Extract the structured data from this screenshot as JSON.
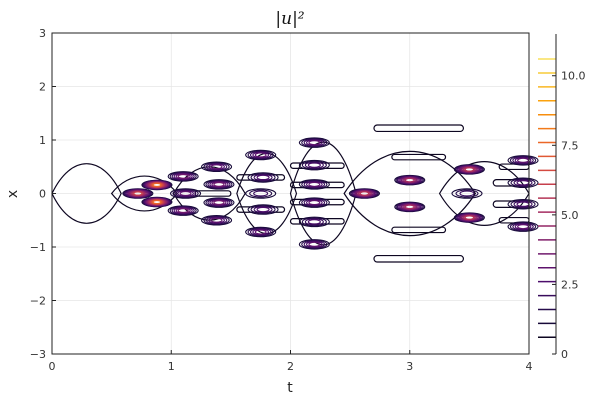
{
  "chart_data": {
    "type": "contour",
    "title": "|u|²",
    "xlabel": "t",
    "ylabel": "x",
    "xlim": [
      0,
      4
    ],
    "ylim": [
      -3,
      3
    ],
    "xticks": [
      0,
      1,
      2,
      3,
      4
    ],
    "xtick_labels": [
      "0",
      "1",
      "2",
      "3",
      "4"
    ],
    "yticks": [
      -3,
      -2,
      -1,
      0,
      1,
      2,
      3
    ],
    "ytick_labels": [
      "−3",
      "−2",
      "−1",
      "0",
      "1",
      "2",
      "3"
    ],
    "grid": true,
    "colorbar": {
      "range": [
        0,
        11.5
      ],
      "ticks": [
        0,
        2.5,
        5.0,
        7.5,
        10.0
      ],
      "tick_labels": [
        "0",
        "2.5",
        "5.0",
        "7.5",
        "10.0"
      ],
      "levels": [
        0.6,
        1.1,
        1.6,
        2.1,
        2.6,
        3.1,
        3.6,
        4.1,
        4.6,
        5.1,
        5.6,
        6.1,
        6.6,
        7.1,
        7.6,
        8.1,
        8.6,
        9.1,
        9.6,
        10.1,
        10.6
      ],
      "colormap": [
        "#000004",
        "#1b0c41",
        "#4a0c6b",
        "#781c6d",
        "#a52c60",
        "#cf4446",
        "#ed6925",
        "#fb9b06",
        "#f7d13d",
        "#fcffa4"
      ]
    },
    "shapes": [
      {
        "kind": "lens",
        "t0": 0.0,
        "t1": 0.58,
        "x": 0.0,
        "hw": 0.58,
        "level": 0.6
      },
      {
        "kind": "lens",
        "t0": 0.5,
        "t1": 1.05,
        "x": 0.0,
        "hw": 0.34,
        "level": 0.6
      },
      {
        "kind": "lens",
        "t0": 1.02,
        "t1": 1.62,
        "x": 0.0,
        "hw": 0.52,
        "level": 0.6
      },
      {
        "kind": "lens",
        "t0": 1.55,
        "t1": 2.05,
        "x": 0.0,
        "hw": 0.78,
        "level": 0.6
      },
      {
        "kind": "lens",
        "t0": 2.0,
        "t1": 2.55,
        "x": 0.0,
        "hw": 1.0,
        "level": 0.6
      },
      {
        "kind": "lens",
        "t0": 2.45,
        "t1": 3.55,
        "x": 0.0,
        "hw": 0.82,
        "level": 0.6
      },
      {
        "kind": "lens",
        "t0": 3.25,
        "t1": 4.0,
        "x": 0.0,
        "hw": 0.62,
        "level": 0.6
      },
      {
        "kind": "band",
        "t0": 2.7,
        "t1": 3.45,
        "x": 1.22,
        "hw": 0.06,
        "level": 0.6
      },
      {
        "kind": "band",
        "t0": 2.7,
        "t1": 3.45,
        "x": -1.22,
        "hw": 0.06,
        "level": 0.6
      },
      {
        "kind": "band",
        "t0": 2.85,
        "t1": 3.3,
        "x": 0.68,
        "hw": 0.05,
        "level": 0.6
      },
      {
        "kind": "band",
        "t0": 2.85,
        "t1": 3.3,
        "x": -0.68,
        "hw": 0.05,
        "level": 0.6
      },
      {
        "kind": "band",
        "t0": 2.0,
        "t1": 2.45,
        "x": 0.16,
        "hw": 0.05,
        "level": 0.6
      },
      {
        "kind": "band",
        "t0": 2.0,
        "t1": 2.45,
        "x": -0.16,
        "hw": 0.05,
        "level": 0.6
      },
      {
        "kind": "band",
        "t0": 2.0,
        "t1": 2.45,
        "x": 0.52,
        "hw": 0.05,
        "level": 0.6
      },
      {
        "kind": "band",
        "t0": 2.0,
        "t1": 2.45,
        "x": -0.52,
        "hw": 0.05,
        "level": 0.6
      },
      {
        "kind": "band",
        "t0": 3.7,
        "t1": 4.0,
        "x": 0.2,
        "hw": 0.06,
        "level": 0.6
      },
      {
        "kind": "band",
        "t0": 3.7,
        "t1": 4.0,
        "x": -0.2,
        "hw": 0.06,
        "level": 0.6
      },
      {
        "kind": "band",
        "t0": 3.75,
        "t1": 4.0,
        "x": 0.5,
        "hw": 0.05,
        "level": 0.6
      },
      {
        "kind": "band",
        "t0": 3.75,
        "t1": 4.0,
        "x": -0.5,
        "hw": 0.05,
        "level": 0.6
      },
      {
        "kind": "band",
        "t0": 1.55,
        "t1": 1.95,
        "x": 0.3,
        "hw": 0.05,
        "level": 0.6
      },
      {
        "kind": "band",
        "t0": 1.55,
        "t1": 1.95,
        "x": -0.3,
        "hw": 0.05,
        "level": 0.6
      },
      {
        "kind": "band",
        "t0": 1.2,
        "t1": 1.5,
        "x": 0.0,
        "hw": 0.05,
        "level": 0.6
      }
    ],
    "peaks": [
      {
        "t": 0.72,
        "x": 0.0,
        "peak": 6.2
      },
      {
        "t": 0.88,
        "x": 0.16,
        "peak": 7.6
      },
      {
        "t": 0.88,
        "x": -0.16,
        "peak": 7.6
      },
      {
        "t": 1.1,
        "x": 0.32,
        "peak": 3.6
      },
      {
        "t": 1.1,
        "x": -0.32,
        "peak": 3.6
      },
      {
        "t": 1.12,
        "x": 0.0,
        "peak": 3.1
      },
      {
        "t": 1.38,
        "x": 0.5,
        "peak": 3.1
      },
      {
        "t": 1.38,
        "x": -0.5,
        "peak": 3.1
      },
      {
        "t": 1.4,
        "x": 0.17,
        "peak": 3.6
      },
      {
        "t": 1.4,
        "x": -0.17,
        "peak": 3.6
      },
      {
        "t": 1.75,
        "x": 0.72,
        "peak": 3.1
      },
      {
        "t": 1.75,
        "x": -0.72,
        "peak": 3.1
      },
      {
        "t": 1.77,
        "x": 0.3,
        "peak": 2.6
      },
      {
        "t": 1.77,
        "x": -0.3,
        "peak": 2.6
      },
      {
        "t": 1.75,
        "x": 0.0,
        "peak": 2.1
      },
      {
        "t": 2.2,
        "x": 0.95,
        "peak": 3.1
      },
      {
        "t": 2.2,
        "x": -0.95,
        "peak": 3.1
      },
      {
        "t": 2.2,
        "x": 0.53,
        "peak": 2.6
      },
      {
        "t": 2.2,
        "x": -0.53,
        "peak": 2.6
      },
      {
        "t": 2.2,
        "x": 0.17,
        "peak": 3.1
      },
      {
        "t": 2.2,
        "x": -0.17,
        "peak": 3.1
      },
      {
        "t": 2.62,
        "x": 0.0,
        "peak": 5.6
      },
      {
        "t": 3.0,
        "x": 0.25,
        "peak": 5.1
      },
      {
        "t": 3.0,
        "x": -0.25,
        "peak": 5.1
      },
      {
        "t": 3.5,
        "x": 0.45,
        "peak": 5.6
      },
      {
        "t": 3.5,
        "x": -0.45,
        "peak": 5.6
      },
      {
        "t": 3.48,
        "x": 0.0,
        "peak": 2.1
      },
      {
        "t": 3.95,
        "x": 0.62,
        "peak": 3.1
      },
      {
        "t": 3.95,
        "x": -0.62,
        "peak": 3.1
      },
      {
        "t": 3.95,
        "x": 0.2,
        "peak": 2.6
      },
      {
        "t": 3.95,
        "x": -0.2,
        "peak": 2.6
      }
    ]
  }
}
